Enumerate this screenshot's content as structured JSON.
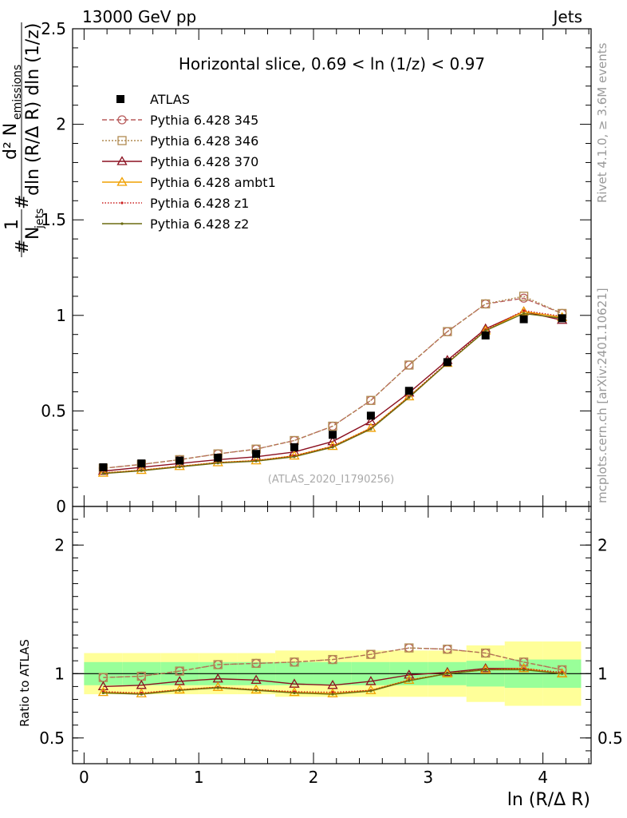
{
  "header": {
    "left": "13000 GeV pp",
    "right": "Jets"
  },
  "side_labels": {
    "rivet": "Rivet 4.1.0, ≥ 3.6M events",
    "mcplots": "mcplots.cern.ch [arXiv:2401.10621]"
  },
  "chart_data": [
    {
      "type": "line",
      "panel": "main",
      "title": "Horizontal slice, 0.69 < ln (1/z) < 0.97",
      "watermark": "(ATLAS_2020_I1790256)",
      "ylabel_parts": {
        "lead": "1",
        "n_jets": "N",
        "jets_sub": "jets",
        "hash": "#",
        "num": "d² N",
        "emissions_sub": "emissions",
        "den": "dln (R/Δ R) dln (1/z)"
      },
      "xlabel": "ln (R/Δ R)",
      "xlim": [
        -0.1,
        4.42
      ],
      "ylim": [
        0,
        2.5
      ],
      "xticks": [
        "0",
        "1",
        "2",
        "3",
        "4"
      ],
      "yticks": [
        "0",
        "0.5",
        "1",
        "1.5",
        "2",
        "2.5"
      ],
      "x": [
        0.167,
        0.5,
        0.833,
        1.167,
        1.5,
        1.833,
        2.167,
        2.5,
        2.833,
        3.167,
        3.5,
        3.833,
        4.167
      ],
      "data": {
        "name": "ATLAS",
        "values": [
          0.205,
          0.225,
          0.24,
          0.255,
          0.275,
          0.31,
          0.375,
          0.475,
          0.605,
          0.755,
          0.895,
          0.98,
          0.985
        ]
      },
      "series": [
        {
          "name": "Pythia 6.428 345",
          "color": "#b85c5c",
          "marker": "circle",
          "dash": "6,3",
          "values": [
            0.2,
            0.22,
            0.245,
            0.275,
            0.3,
            0.345,
            0.42,
            0.555,
            0.74,
            0.915,
            1.06,
            1.09,
            1.01
          ]
        },
        {
          "name": "Pythia 6.428 346",
          "color": "#b08a50",
          "marker": "square",
          "dash": "2,2",
          "values": [
            0.2,
            0.22,
            0.245,
            0.275,
            0.3,
            0.345,
            0.42,
            0.555,
            0.74,
            0.915,
            1.06,
            1.1,
            1.01
          ]
        },
        {
          "name": "Pythia 6.428 370",
          "color": "#8b1020",
          "marker": "triangle",
          "dash": "",
          "values": [
            0.185,
            0.205,
            0.225,
            0.245,
            0.26,
            0.285,
            0.34,
            0.445,
            0.595,
            0.765,
            0.93,
            1.02,
            0.975
          ]
        },
        {
          "name": "Pythia 6.428 ambt1",
          "color": "#f0a000",
          "marker": "triangle",
          "dash": "",
          "values": [
            0.175,
            0.19,
            0.21,
            0.23,
            0.24,
            0.265,
            0.315,
            0.41,
            0.575,
            0.75,
            0.92,
            1.02,
            0.99
          ]
        },
        {
          "name": "Pythia 6.428 z1",
          "color": "#cc2020",
          "marker": "dot",
          "dash": "1.5,2",
          "values": [
            0.175,
            0.19,
            0.21,
            0.23,
            0.24,
            0.265,
            0.315,
            0.41,
            0.575,
            0.755,
            0.925,
            1.025,
            0.995
          ]
        },
        {
          "name": "Pythia 6.428 z2",
          "color": "#6b6b10",
          "marker": "dot",
          "dash": "",
          "values": [
            0.172,
            0.187,
            0.207,
            0.227,
            0.237,
            0.26,
            0.31,
            0.405,
            0.57,
            0.75,
            0.92,
            1.01,
            0.985
          ]
        }
      ]
    },
    {
      "type": "line",
      "panel": "ratio",
      "ylabel": "Ratio to ATLAS",
      "xlabel": "ln (R/Δ R)",
      "xlim": [
        -0.1,
        4.42
      ],
      "ylim": [
        0.3,
        2.3
      ],
      "xticks": [
        "0",
        "1",
        "2",
        "3",
        "4"
      ],
      "yticks": [
        "0.5",
        "1",
        "2"
      ],
      "x": [
        0.167,
        0.5,
        0.833,
        1.167,
        1.5,
        1.833,
        2.167,
        2.5,
        2.833,
        3.167,
        3.5,
        3.833,
        4.167
      ],
      "x_edges": [
        0,
        0.333,
        0.667,
        1.0,
        1.333,
        1.667,
        2.0,
        2.333,
        2.667,
        3.0,
        3.333,
        3.667,
        4.0,
        4.333
      ],
      "band_inner": [
        0.09,
        0.09,
        0.09,
        0.09,
        0.09,
        0.09,
        0.09,
        0.09,
        0.09,
        0.09,
        0.1,
        0.11,
        0.11
      ],
      "band_outer": [
        0.16,
        0.16,
        0.16,
        0.16,
        0.16,
        0.18,
        0.18,
        0.18,
        0.18,
        0.18,
        0.22,
        0.25,
        0.25
      ],
      "series": [
        {
          "name": "Pythia 6.428 345",
          "color": "#b85c5c",
          "marker": "circle",
          "dash": "6,3",
          "values": [
            0.97,
            0.98,
            1.02,
            1.07,
            1.08,
            1.09,
            1.11,
            1.15,
            1.2,
            1.19,
            1.16,
            1.09,
            1.03
          ]
        },
        {
          "name": "Pythia 6.428 346",
          "color": "#b08a50",
          "marker": "square",
          "dash": "2,2",
          "values": [
            0.97,
            0.98,
            1.02,
            1.07,
            1.08,
            1.09,
            1.11,
            1.15,
            1.2,
            1.19,
            1.16,
            1.09,
            1.03
          ]
        },
        {
          "name": "Pythia 6.428 370",
          "color": "#8b1020",
          "marker": "triangle",
          "dash": "",
          "values": [
            0.9,
            0.91,
            0.94,
            0.96,
            0.95,
            0.92,
            0.91,
            0.94,
            0.99,
            1.01,
            1.04,
            1.04,
            1.0
          ]
        },
        {
          "name": "Pythia 6.428 ambt1",
          "color": "#f0a000",
          "marker": "triangle",
          "dash": "",
          "values": [
            0.855,
            0.845,
            0.875,
            0.895,
            0.875,
            0.855,
            0.845,
            0.87,
            0.95,
            1.0,
            1.03,
            1.04,
            1.0
          ]
        },
        {
          "name": "Pythia 6.428 z1",
          "color": "#cc2020",
          "marker": "dot",
          "dash": "1.5,2",
          "values": [
            0.86,
            0.85,
            0.875,
            0.895,
            0.875,
            0.86,
            0.855,
            0.87,
            0.95,
            1.0,
            1.035,
            1.04,
            1.01
          ]
        },
        {
          "name": "Pythia 6.428 z2",
          "color": "#6b6b10",
          "marker": "dot",
          "dash": "",
          "values": [
            0.85,
            0.84,
            0.87,
            0.89,
            0.87,
            0.85,
            0.84,
            0.865,
            0.945,
            1.0,
            1.03,
            1.03,
            1.0
          ]
        }
      ]
    }
  ]
}
